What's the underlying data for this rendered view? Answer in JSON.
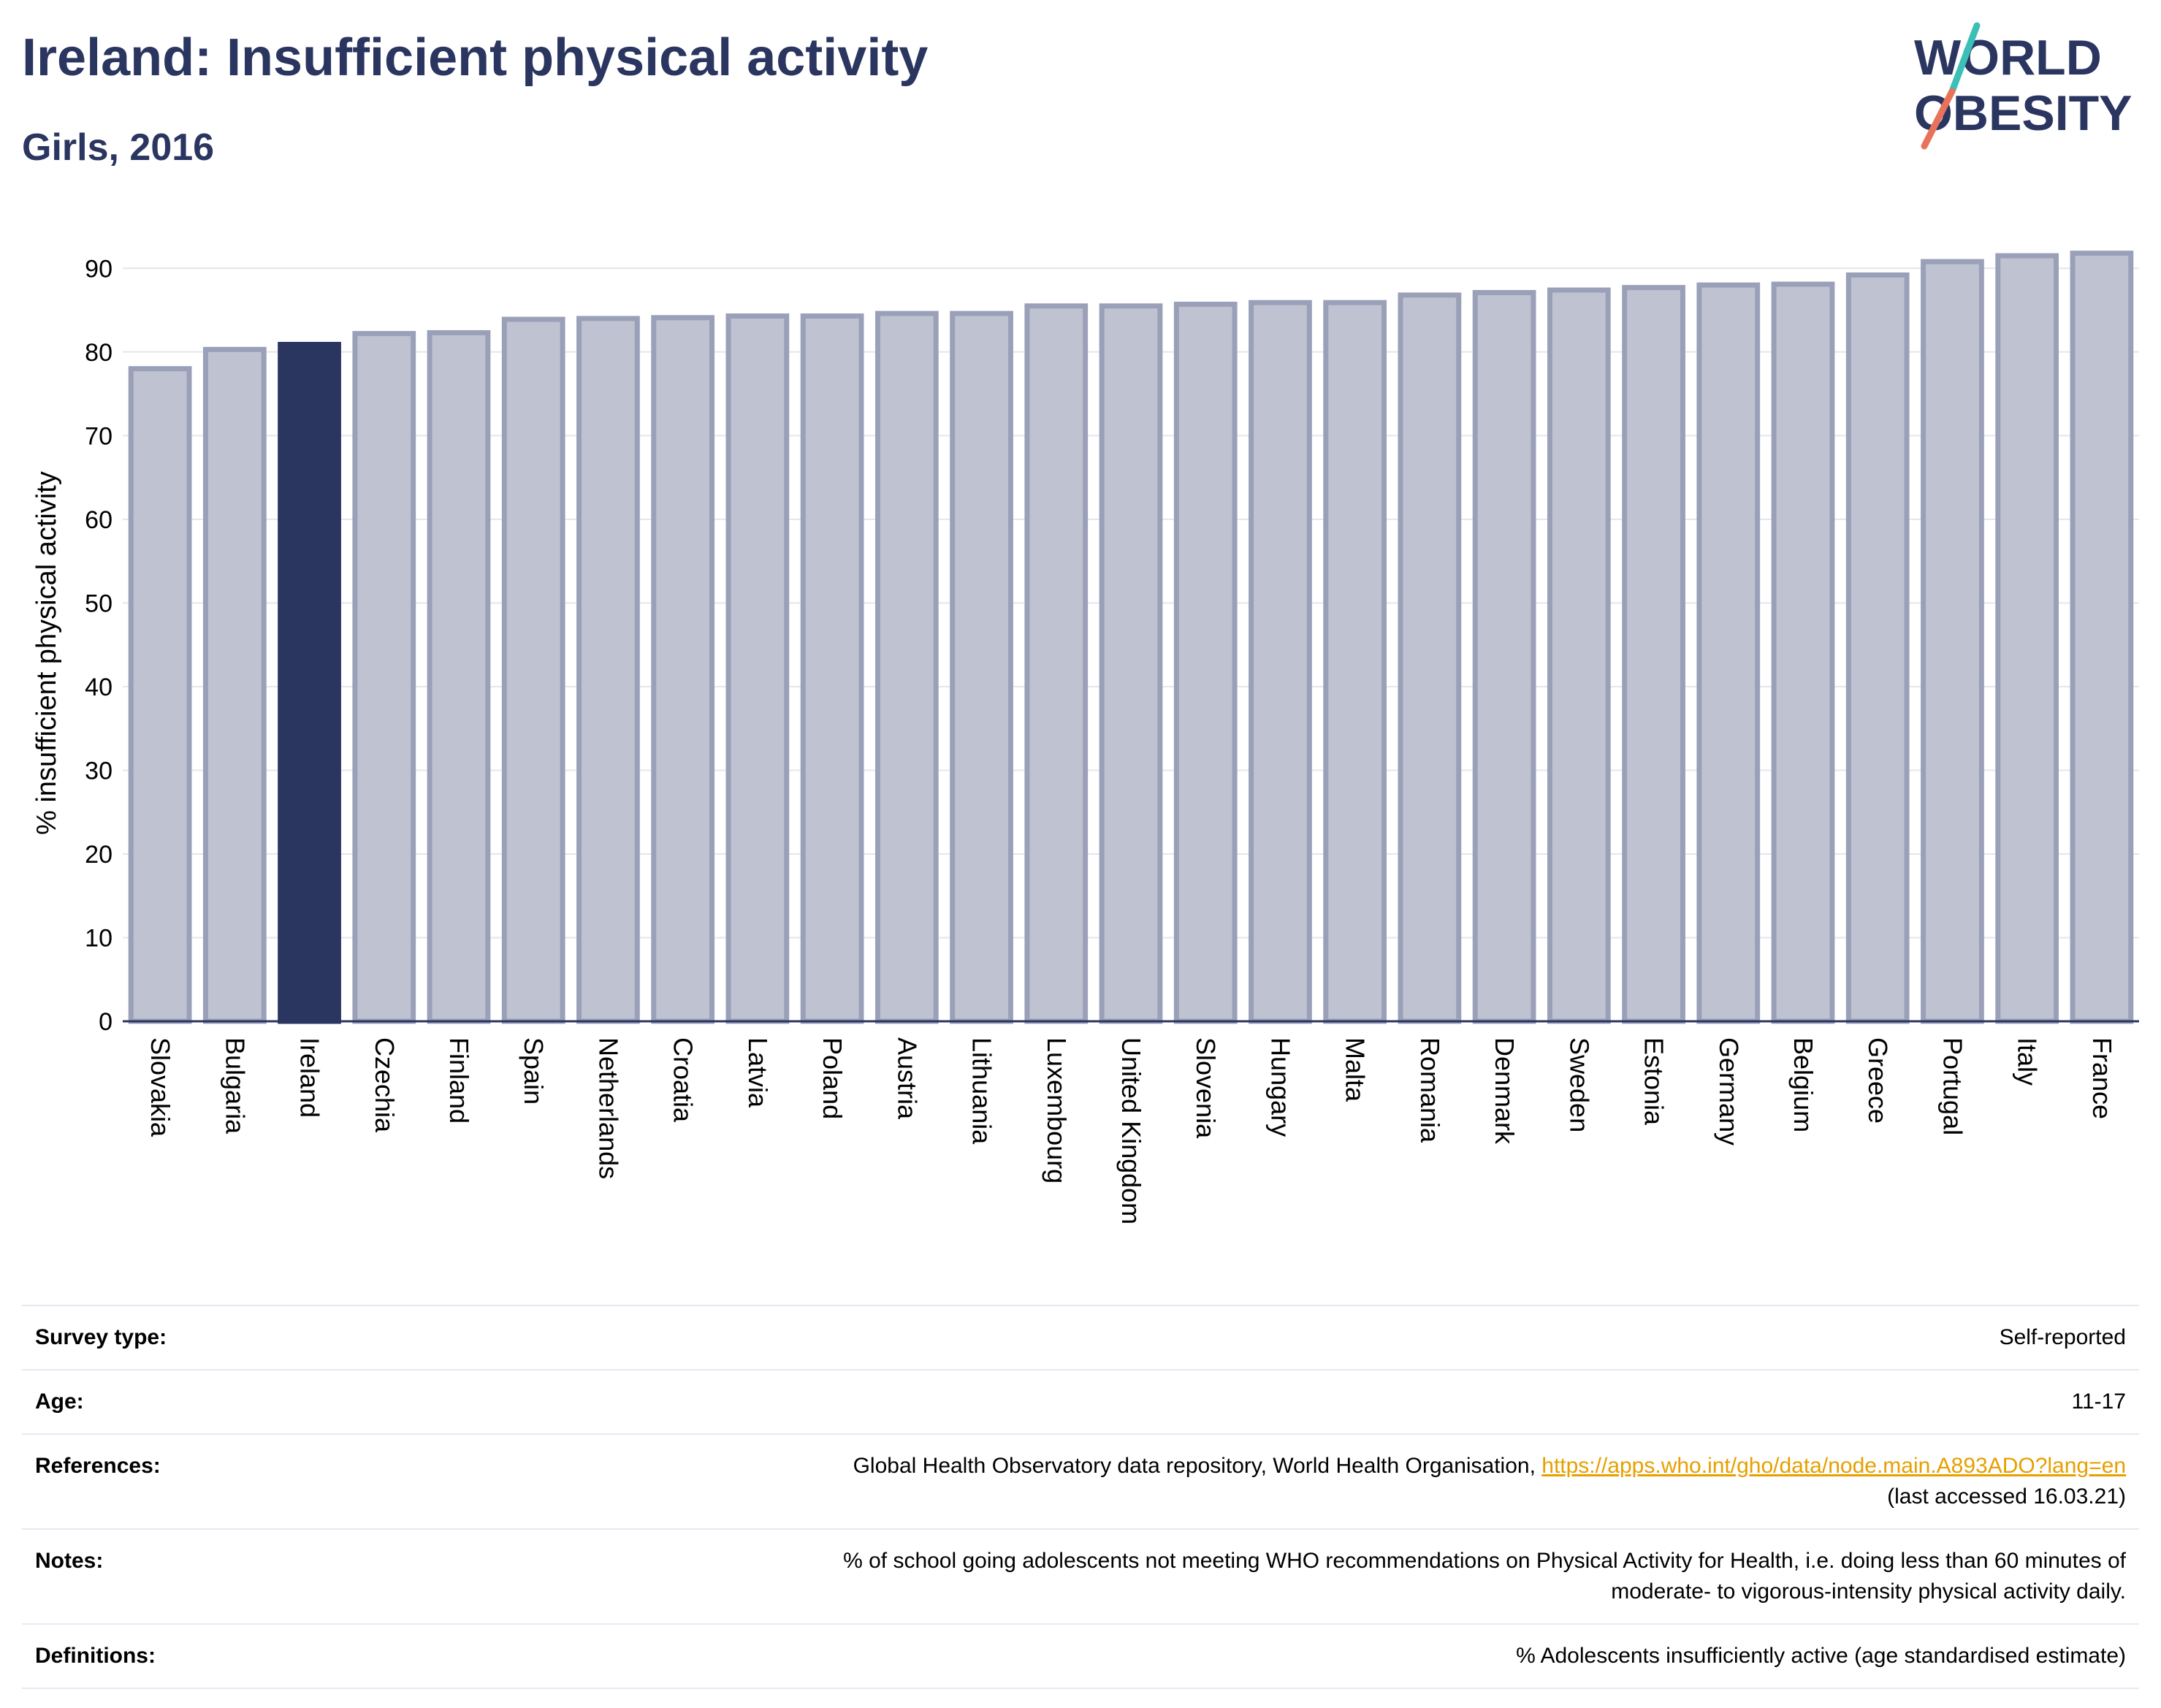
{
  "header": {
    "title": "Ireland: Insufficient physical activity",
    "subtitle": "Girls, 2016"
  },
  "logo": {
    "line1": "WORLD",
    "line2": "OBESITY"
  },
  "colors": {
    "highlight": "#2a3560",
    "bar_fill": "#bfc3d1",
    "bar_stroke": "#9aa0b8",
    "text": "#2a3560",
    "link": "#e6a000",
    "logo_teal": "#3bbfb6",
    "logo_coral": "#e8735a"
  },
  "chart_data": {
    "type": "bar",
    "title": "",
    "xlabel": "",
    "ylabel": "% insufficient physical activity",
    "ylim": [
      0,
      95
    ],
    "yticks": [
      0,
      10,
      20,
      30,
      40,
      50,
      60,
      70,
      80,
      90
    ],
    "grid": true,
    "highlight_category": "Ireland",
    "categories": [
      "Slovakia",
      "Bulgaria",
      "Ireland",
      "Czechia",
      "Finland",
      "Spain",
      "Netherlands",
      "Croatia",
      "Latvia",
      "Poland",
      "Austria",
      "Lithuania",
      "Luxembourg",
      "United Kingdom",
      "Slovenia",
      "Hungary",
      "Malta",
      "Romania",
      "Denmark",
      "Sweden",
      "Estonia",
      "Germany",
      "Belgium",
      "Greece",
      "Portugal",
      "Italy",
      "France"
    ],
    "values": [
      78.0,
      80.3,
      80.9,
      82.2,
      82.3,
      83.9,
      84.0,
      84.1,
      84.3,
      84.3,
      84.6,
      84.6,
      85.5,
      85.5,
      85.7,
      85.9,
      85.9,
      86.8,
      87.1,
      87.4,
      87.7,
      88.0,
      88.1,
      89.2,
      90.8,
      91.5,
      91.8
    ]
  },
  "details": {
    "rows": [
      {
        "key": "Survey type:",
        "value": "Self-reported"
      },
      {
        "key": "Age:",
        "value": "11-17"
      },
      {
        "key": "References:",
        "value": "Global Health Observatory data repository, World Health Organisation, ",
        "link": "https://apps.who.int/gho/data/node.main.A893ADO?lang=en",
        "value2": "(last accessed 16.03.21)"
      },
      {
        "key": "Notes:",
        "value": "% of school going adolescents not meeting WHO recommendations on Physical Activity for Health, i.e. doing less than 60 minutes of",
        "value2": "moderate- to vigorous-intensity physical activity daily."
      },
      {
        "key": "Definitions:",
        "value": "% Adolescents insufficiently active (age standardised estimate)"
      }
    ]
  }
}
